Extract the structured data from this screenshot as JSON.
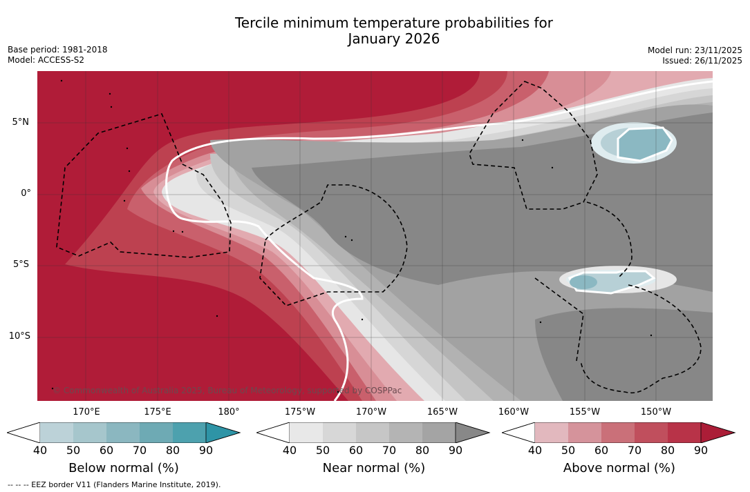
{
  "header": {
    "title_line1": "Tercile minimum temperature probabilities for",
    "title_line2": "January 2026",
    "base_period": "Base period: 1981-2018",
    "model": "Model: ACCESS-S2",
    "model_run": "Model run: 23/11/2025",
    "issued": "Issued: 26/11/2025"
  },
  "map": {
    "lat_labels": [
      "5°N",
      "0°",
      "5°S",
      "10°S"
    ],
    "lon_labels": [
      "170°E",
      "175°E",
      "180°",
      "175°W",
      "170°W",
      "165°W",
      "160°W",
      "155°W",
      "150°W"
    ],
    "copyright": "© Commonwealth of Australia 2025, Bureau of Meteorology, supported by COSPPac",
    "colors": {
      "above": [
        "#f4dde0",
        "#e2aab0",
        "#d88e96",
        "#c9606c",
        "#bd4150",
        "#b01c38"
      ],
      "near": [
        "#e6e6e6",
        "#d6d6d6",
        "#c4c4c4",
        "#b2b2b2",
        "#a2a2a2",
        "#878787"
      ],
      "below": [
        "#dfecef",
        "#b7d0d6",
        "#9ec3cb",
        "#8bb8c2",
        "#6aa9b5",
        "#4aa0ad"
      ]
    }
  },
  "colorbars": [
    {
      "name": "below",
      "label": "Below normal (%)",
      "ticks": [
        "40",
        "50",
        "60",
        "70",
        "80",
        "90"
      ],
      "colors": [
        "#bcd2d8",
        "#a6c6cc",
        "#8bb7c0",
        "#6eaab4",
        "#4da1ae"
      ],
      "extend_color": "#2e94a6"
    },
    {
      "name": "near",
      "label": "Near normal (%)",
      "ticks": [
        "40",
        "50",
        "60",
        "70",
        "80",
        "90"
      ],
      "colors": [
        "#e8e8e8",
        "#d7d7d7",
        "#c6c6c6",
        "#b4b4b4",
        "#a4a4a4"
      ],
      "extend_color": "#888888"
    },
    {
      "name": "above",
      "label": "Above normal (%)",
      "ticks": [
        "40",
        "50",
        "60",
        "70",
        "80",
        "90"
      ],
      "colors": [
        "#e2b8be",
        "#d5939b",
        "#ca7079",
        "#c04f5d",
        "#b83348"
      ],
      "extend_color": "#ab1d37"
    }
  ],
  "footer": {
    "eez_note": "--  --  -- EEZ border V11 (Flanders Marine Institute, 2019)."
  }
}
